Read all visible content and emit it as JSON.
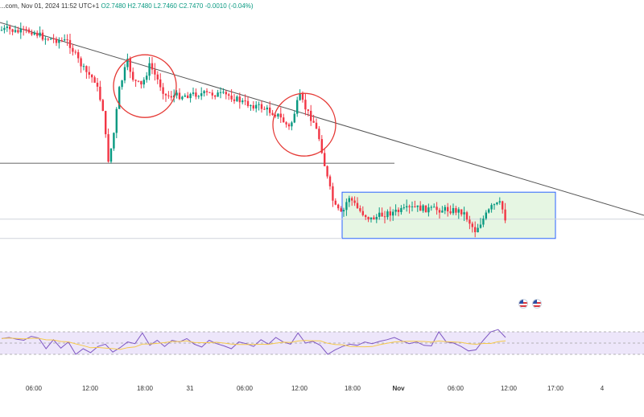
{
  "header": {
    "prefix": "...com, Nov 01, 2024 11:52 UTC+1",
    "open": "O2.7480",
    "high": "H2.7480",
    "low": "L2.7460",
    "close": "C2.7470",
    "change": "-0.0010 (-0.04%)"
  },
  "colors": {
    "up": "#089981",
    "down": "#f23645",
    "trendline": "#555555",
    "circle": "#e53935",
    "box_stroke": "#2962ff",
    "box_fill": "#e6f6e3",
    "rsi": "#7e57c2",
    "rsi_ma": "#f5c94a",
    "rsi_band": "#ede6fa"
  },
  "icons": [
    "flag-us-icon",
    "flag-us-icon"
  ],
  "chart_data": [
    {
      "type": "candlestick",
      "x_ticks": [
        "06:00",
        "12:00",
        "18:00",
        "31",
        "06:00",
        "12:00",
        "18:00",
        "Nov",
        "06:00",
        "12:00",
        "17:00",
        "4"
      ],
      "bold_ticks": [
        "Nov"
      ],
      "close_path": [
        [
          0,
          0.04
        ],
        [
          10,
          0.035
        ],
        [
          20,
          0.05
        ],
        [
          40,
          0.045
        ],
        [
          55,
          0.08
        ],
        [
          70,
          0.09
        ],
        [
          85,
          0.1
        ],
        [
          95,
          0.18
        ],
        [
          105,
          0.25
        ],
        [
          118,
          0.3
        ],
        [
          128,
          0.45
        ],
        [
          134,
          0.72
        ],
        [
          140,
          0.62
        ],
        [
          148,
          0.35
        ],
        [
          158,
          0.2
        ],
        [
          166,
          0.3
        ],
        [
          176,
          0.33
        ],
        [
          186,
          0.22
        ],
        [
          196,
          0.3
        ],
        [
          206,
          0.38
        ],
        [
          225,
          0.38
        ],
        [
          245,
          0.37
        ],
        [
          265,
          0.37
        ],
        [
          285,
          0.38
        ],
        [
          305,
          0.42
        ],
        [
          325,
          0.44
        ],
        [
          345,
          0.48
        ],
        [
          360,
          0.55
        ],
        [
          372,
          0.38
        ],
        [
          380,
          0.45
        ],
        [
          390,
          0.52
        ],
        [
          398,
          0.62
        ],
        [
          405,
          0.78
        ],
        [
          415,
          0.95
        ],
        [
          425,
          1.0
        ],
        [
          433,
          0.9
        ],
        [
          445,
          0.97
        ],
        [
          460,
          1.02
        ],
        [
          480,
          0.99
        ],
        [
          495,
          0.98
        ],
        [
          515,
          0.96
        ],
        [
          535,
          0.97
        ],
        [
          555,
          0.97
        ],
        [
          575,
          0.98
        ],
        [
          590,
          1.08
        ],
        [
          600,
          1.02
        ],
        [
          612,
          0.95
        ],
        [
          622,
          0.94
        ],
        [
          628,
          1.02
        ]
      ],
      "y_ref": {
        "top": 0.0,
        "bottom": 1.0
      },
      "annotations": {
        "trendline": {
          "from": [
            0,
            0.0
          ],
          "to": [
            800,
            1.0
          ]
        },
        "support_line": {
          "from": [
            0,
            0.73
          ],
          "to": [
            490,
            0.73
          ]
        },
        "price_line": 1.02,
        "low_line": 1.12,
        "circles": [
          {
            "x": 180,
            "y": 0.33
          },
          {
            "x": 378,
            "y": 0.53
          }
        ],
        "range_box": {
          "x0": 425,
          "x1": 690,
          "y0": 0.88,
          "y1": 1.12
        }
      }
    },
    {
      "type": "line",
      "name": "",
      "series": [
        {
          "name": "",
          "values": [
            58,
            60,
            57,
            55,
            62,
            59,
            40,
            56,
            41,
            52,
            30,
            40,
            33,
            44,
            48,
            34,
            42,
            52,
            49,
            68,
            46,
            55,
            44,
            55,
            52,
            58,
            48,
            43,
            55,
            49,
            45,
            40,
            52,
            49,
            44,
            56,
            48,
            60,
            52,
            48,
            68,
            50,
            53,
            46,
            30,
            38,
            44,
            48,
            46,
            52,
            49,
            53,
            56,
            60,
            54,
            49,
            52,
            46,
            45,
            70,
            52,
            50,
            44,
            36,
            38,
            55,
            70,
            74,
            60
          ]
        }
      ],
      "ylim": [
        0,
        100
      ],
      "levels": [
        70,
        50,
        30
      ]
    }
  ]
}
